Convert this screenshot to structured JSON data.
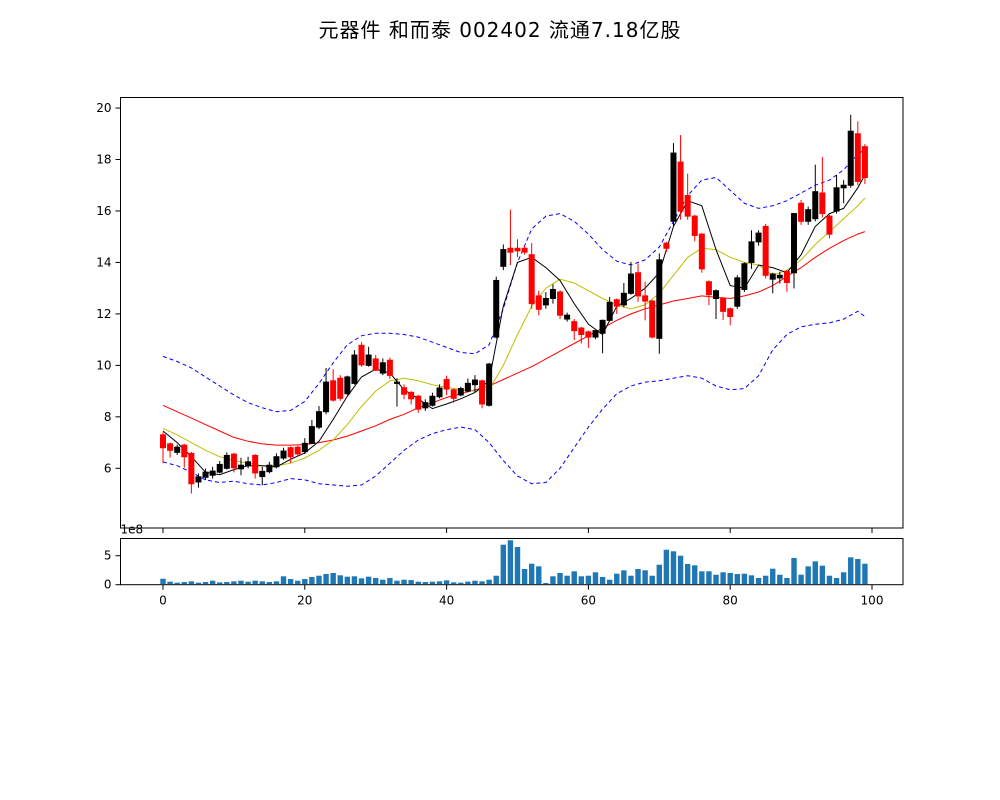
{
  "title": "元器件  和而泰  002402  流通7.18亿股",
  "chart_data": {
    "type": "candlestick+volume",
    "title": "元器件  和而泰  002402  流通7.18亿股",
    "main_y_ticks": [
      6,
      8,
      10,
      12,
      14,
      16,
      18,
      20
    ],
    "x_ticks": [
      0,
      20,
      40,
      60,
      80,
      100
    ],
    "volume_y_ticks": [
      0,
      5
    ],
    "volume_scale_label": "1e8",
    "ylim": [
      3.68,
      20.41
    ],
    "xlim": [
      -6,
      104.4
    ],
    "volume_ylim": [
      0,
      7.97
    ],
    "colors": {
      "up_candle": "#000000",
      "down_candle": "#ff0000",
      "volume_bar": "#1f77b4",
      "ma_fast": "#000000",
      "ma_mid": "#bfbf00",
      "ma_slow": "#ff0000",
      "bollinger": "#0000ff",
      "axes": "#000000"
    },
    "candles_format": [
      "open",
      "high",
      "low",
      "close"
    ],
    "candles": [
      [
        7.3,
        7.4,
        6.2,
        6.8
      ],
      [
        6.95,
        7.0,
        6.42,
        6.7
      ],
      [
        6.62,
        6.92,
        6.52,
        6.82
      ],
      [
        6.9,
        6.95,
        6.03,
        6.45
      ],
      [
        6.58,
        6.64,
        5.02,
        5.4
      ],
      [
        5.47,
        5.8,
        5.25,
        5.67
      ],
      [
        5.65,
        5.99,
        5.54,
        5.85
      ],
      [
        5.73,
        6.06,
        5.6,
        5.89
      ],
      [
        5.85,
        6.28,
        5.8,
        6.15
      ],
      [
        6.0,
        6.62,
        5.95,
        6.5
      ],
      [
        6.55,
        6.6,
        5.84,
        6.02
      ],
      [
        5.98,
        6.41,
        5.73,
        6.12
      ],
      [
        6.1,
        6.45,
        6.0,
        6.25
      ],
      [
        6.5,
        6.55,
        5.6,
        5.82
      ],
      [
        5.68,
        6.06,
        5.34,
        5.88
      ],
      [
        5.87,
        6.25,
        5.8,
        6.12
      ],
      [
        6.06,
        6.58,
        6.0,
        6.45
      ],
      [
        6.4,
        6.8,
        6.33,
        6.67
      ],
      [
        6.8,
        6.85,
        6.2,
        6.45
      ],
      [
        6.82,
        6.88,
        6.45,
        6.56
      ],
      [
        6.65,
        7.17,
        6.55,
        6.97
      ],
      [
        6.97,
        7.88,
        6.95,
        7.62
      ],
      [
        7.6,
        8.42,
        7.52,
        8.2
      ],
      [
        8.2,
        9.9,
        8.1,
        9.35
      ],
      [
        9.4,
        9.85,
        8.59,
        8.65
      ],
      [
        9.5,
        9.62,
        8.62,
        8.72
      ],
      [
        8.9,
        9.6,
        8.85,
        9.55
      ],
      [
        9.3,
        10.59,
        9.25,
        10.4
      ],
      [
        10.78,
        10.9,
        9.95,
        10.02
      ],
      [
        10.0,
        10.72,
        9.95,
        10.4
      ],
      [
        10.25,
        10.4,
        9.78,
        9.81
      ],
      [
        9.7,
        10.27,
        9.62,
        10.1
      ],
      [
        10.2,
        10.3,
        9.48,
        9.61
      ],
      [
        9.3,
        9.5,
        8.4,
        9.35
      ],
      [
        9.13,
        9.26,
        8.68,
        8.88
      ],
      [
        8.95,
        9.0,
        8.48,
        8.7
      ],
      [
        8.8,
        8.85,
        8.16,
        8.3
      ],
      [
        8.35,
        8.68,
        8.23,
        8.55
      ],
      [
        8.45,
        8.94,
        8.4,
        8.8
      ],
      [
        8.78,
        9.26,
        8.72,
        9.12
      ],
      [
        9.45,
        9.6,
        8.84,
        9.08
      ],
      [
        9.05,
        9.1,
        8.55,
        8.72
      ],
      [
        8.85,
        9.17,
        8.8,
        9.1
      ],
      [
        9.0,
        9.49,
        8.95,
        9.3
      ],
      [
        9.25,
        9.62,
        8.97,
        9.43
      ],
      [
        9.4,
        9.45,
        8.33,
        8.5
      ],
      [
        8.45,
        10.1,
        8.4,
        10.05
      ],
      [
        11.1,
        13.45,
        11.05,
        13.3
      ],
      [
        13.85,
        14.7,
        13.7,
        14.5
      ],
      [
        14.55,
        16.05,
        13.9,
        14.4
      ],
      [
        14.55,
        14.9,
        14.2,
        14.45
      ],
      [
        14.55,
        14.65,
        14.3,
        14.4
      ],
      [
        14.3,
        14.75,
        12.2,
        12.4
      ],
      [
        12.7,
        12.9,
        11.95,
        12.18
      ],
      [
        12.35,
        12.85,
        12.2,
        12.6
      ],
      [
        12.6,
        13.15,
        12.4,
        12.95
      ],
      [
        12.85,
        12.92,
        11.8,
        11.95
      ],
      [
        11.8,
        12.05,
        11.7,
        11.95
      ],
      [
        11.7,
        11.8,
        10.98,
        11.35
      ],
      [
        11.45,
        11.5,
        10.85,
        11.2
      ],
      [
        11.3,
        11.35,
        10.68,
        11.1
      ],
      [
        11.1,
        11.38,
        11.02,
        11.35
      ],
      [
        11.25,
        11.78,
        10.47,
        11.75
      ],
      [
        11.75,
        12.66,
        11.7,
        12.45
      ],
      [
        12.55,
        12.6,
        12.0,
        12.3
      ],
      [
        12.35,
        13.2,
        12.25,
        12.8
      ],
      [
        12.8,
        14.02,
        12.75,
        13.55
      ],
      [
        13.6,
        13.96,
        12.47,
        12.7
      ],
      [
        12.7,
        13.25,
        11.75,
        12.5
      ],
      [
        12.5,
        12.55,
        11.05,
        11.1
      ],
      [
        11.05,
        14.35,
        10.45,
        14.1
      ],
      [
        14.75,
        14.8,
        14.4,
        14.55
      ],
      [
        15.6,
        18.64,
        15.4,
        18.25
      ],
      [
        17.9,
        18.95,
        15.66,
        16.0
      ],
      [
        16.6,
        17.45,
        15.66,
        15.8
      ],
      [
        15.8,
        15.85,
        14.82,
        15.05
      ],
      [
        15.1,
        15.15,
        13.6,
        13.75
      ],
      [
        13.25,
        13.3,
        12.34,
        12.75
      ],
      [
        12.6,
        12.95,
        11.8,
        12.9
      ],
      [
        12.6,
        12.65,
        11.76,
        12.1
      ],
      [
        12.2,
        12.25,
        11.56,
        11.9
      ],
      [
        12.3,
        13.5,
        12.2,
        13.4
      ],
      [
        12.95,
        14.0,
        12.85,
        13.95
      ],
      [
        14.0,
        15.25,
        13.75,
        14.8
      ],
      [
        14.8,
        15.25,
        14.65,
        15.14
      ],
      [
        15.4,
        15.5,
        13.38,
        13.5
      ],
      [
        13.35,
        13.6,
        12.8,
        13.55
      ],
      [
        13.4,
        13.64,
        13.18,
        13.5
      ],
      [
        13.65,
        13.7,
        12.86,
        13.22
      ],
      [
        13.6,
        15.91,
        12.99,
        15.9
      ],
      [
        16.3,
        16.43,
        15.46,
        15.6
      ],
      [
        15.6,
        16.17,
        15.46,
        16.05
      ],
      [
        15.7,
        17.8,
        15.6,
        16.75
      ],
      [
        16.7,
        18.1,
        15.75,
        15.9
      ],
      [
        15.8,
        15.85,
        14.94,
        15.1
      ],
      [
        16.0,
        17.4,
        15.9,
        16.9
      ],
      [
        16.9,
        17.2,
        16.3,
        17.0
      ],
      [
        17.0,
        19.74,
        16.9,
        19.1
      ],
      [
        19.0,
        19.48,
        17.0,
        17.15
      ],
      [
        18.5,
        18.6,
        17.05,
        17.3
      ]
    ],
    "volume_1e8": [
      1.03,
      0.52,
      0.35,
      0.46,
      0.58,
      0.35,
      0.46,
      0.69,
      0.4,
      0.46,
      0.58,
      0.69,
      0.52,
      0.69,
      0.58,
      0.46,
      0.58,
      1.45,
      0.98,
      0.69,
      0.98,
      1.33,
      1.55,
      1.84,
      2.02,
      1.62,
      1.38,
      1.45,
      1.1,
      1.38,
      1.16,
      0.86,
      1.16,
      0.69,
      0.86,
      0.8,
      0.52,
      0.46,
      0.52,
      0.58,
      0.75,
      0.4,
      0.35,
      0.52,
      0.69,
      0.58,
      0.86,
      1.55,
      6.9,
      7.66,
      6.5,
      2.71,
      3.62,
      3.17,
      0.29,
      1.45,
      2.02,
      1.55,
      2.31,
      1.45,
      1.55,
      2.14,
      1.33,
      0.86,
      1.9,
      2.48,
      1.55,
      2.71,
      2.48,
      1.55,
      3.45,
      6.03,
      5.76,
      5.0,
      3.57,
      3.34,
      2.31,
      2.31,
      1.72,
      2.14,
      2.02,
      1.84,
      1.9,
      1.62,
      1.16,
      1.55,
      2.76,
      1.72,
      1.16,
      4.6,
      1.72,
      3.17,
      4.03,
      3.28,
      1.55,
      1.16,
      2.14,
      4.72,
      4.43,
      3.62
    ],
    "overlays": {
      "x": [
        0,
        2,
        4,
        6,
        8,
        10,
        12,
        14,
        16,
        18,
        20,
        22,
        24,
        26,
        28,
        30,
        32,
        34,
        36,
        38,
        40,
        42,
        44,
        46,
        48,
        50,
        52,
        54,
        56,
        58,
        60,
        62,
        64,
        66,
        68,
        70,
        72,
        74,
        76,
        78,
        80,
        82,
        84,
        86,
        88,
        90,
        92,
        94,
        96,
        98,
        99
      ],
      "ma_fast_black": [
        7.45,
        7.0,
        6.45,
        5.85,
        5.75,
        5.95,
        6.1,
        6.1,
        6.05,
        6.35,
        6.6,
        7.05,
        7.9,
        8.8,
        9.55,
        9.85,
        9.7,
        9.05,
        8.7,
        8.32,
        8.5,
        8.7,
        8.95,
        9.4,
        12.3,
        14.0,
        14.2,
        13.8,
        13.3,
        12.4,
        11.6,
        11.2,
        12.3,
        12.6,
        13.0,
        13.6,
        15.4,
        16.4,
        16.2,
        14.5,
        13.1,
        13.0,
        13.9,
        13.8,
        13.6,
        14.3,
        15.4,
        15.9,
        16.1,
        16.9,
        17.4
      ],
      "ma_mid_yellow": [
        7.55,
        7.3,
        7.0,
        6.7,
        6.45,
        6.3,
        6.2,
        6.1,
        6.1,
        6.2,
        6.4,
        6.7,
        7.1,
        7.7,
        8.4,
        9.0,
        9.4,
        9.5,
        9.4,
        9.25,
        9.15,
        9.05,
        9.0,
        9.05,
        10.0,
        11.2,
        12.3,
        13.0,
        13.35,
        13.2,
        12.9,
        12.6,
        12.35,
        12.2,
        12.35,
        12.8,
        13.5,
        14.2,
        14.55,
        14.5,
        14.2,
        14.0,
        13.9,
        13.5,
        13.7,
        14.1,
        14.7,
        15.2,
        15.7,
        16.2,
        16.5
      ],
      "ma_slow_red": [
        8.45,
        8.2,
        7.95,
        7.7,
        7.45,
        7.2,
        7.05,
        6.95,
        6.9,
        6.9,
        6.92,
        7.0,
        7.1,
        7.25,
        7.45,
        7.65,
        7.9,
        8.1,
        8.35,
        8.55,
        8.75,
        8.9,
        9.05,
        9.2,
        9.45,
        9.7,
        9.95,
        10.25,
        10.55,
        10.85,
        11.15,
        11.45,
        11.75,
        12.0,
        12.2,
        12.35,
        12.5,
        12.6,
        12.7,
        12.65,
        12.6,
        12.7,
        12.85,
        13.1,
        13.45,
        13.8,
        14.2,
        14.55,
        14.85,
        15.1,
        15.2
      ],
      "boll_upper_blue": [
        10.35,
        10.15,
        9.9,
        9.55,
        9.2,
        8.85,
        8.55,
        8.35,
        8.2,
        8.25,
        8.6,
        9.3,
        10.1,
        10.8,
        11.15,
        11.25,
        11.25,
        11.2,
        11.1,
        10.9,
        10.7,
        10.5,
        10.45,
        10.8,
        12.2,
        14.0,
        15.3,
        15.8,
        15.9,
        15.6,
        15.1,
        14.5,
        14.05,
        13.9,
        14.1,
        14.6,
        15.6,
        16.6,
        17.2,
        17.3,
        16.8,
        16.3,
        16.1,
        16.2,
        16.4,
        16.7,
        17.0,
        17.2,
        17.6,
        18.2,
        18.4
      ],
      "boll_lower_blue": [
        6.25,
        6.1,
        5.85,
        5.55,
        5.45,
        5.5,
        5.4,
        5.35,
        5.45,
        5.6,
        5.55,
        5.4,
        5.35,
        5.3,
        5.35,
        5.7,
        6.2,
        6.7,
        7.1,
        7.35,
        7.5,
        7.6,
        7.5,
        7.0,
        6.3,
        5.7,
        5.4,
        5.45,
        6.0,
        6.8,
        7.6,
        8.3,
        8.9,
        9.2,
        9.35,
        9.4,
        9.5,
        9.6,
        9.5,
        9.2,
        9.05,
        9.1,
        9.6,
        10.6,
        11.2,
        11.5,
        11.6,
        11.65,
        11.8,
        12.1,
        11.9
      ]
    }
  }
}
